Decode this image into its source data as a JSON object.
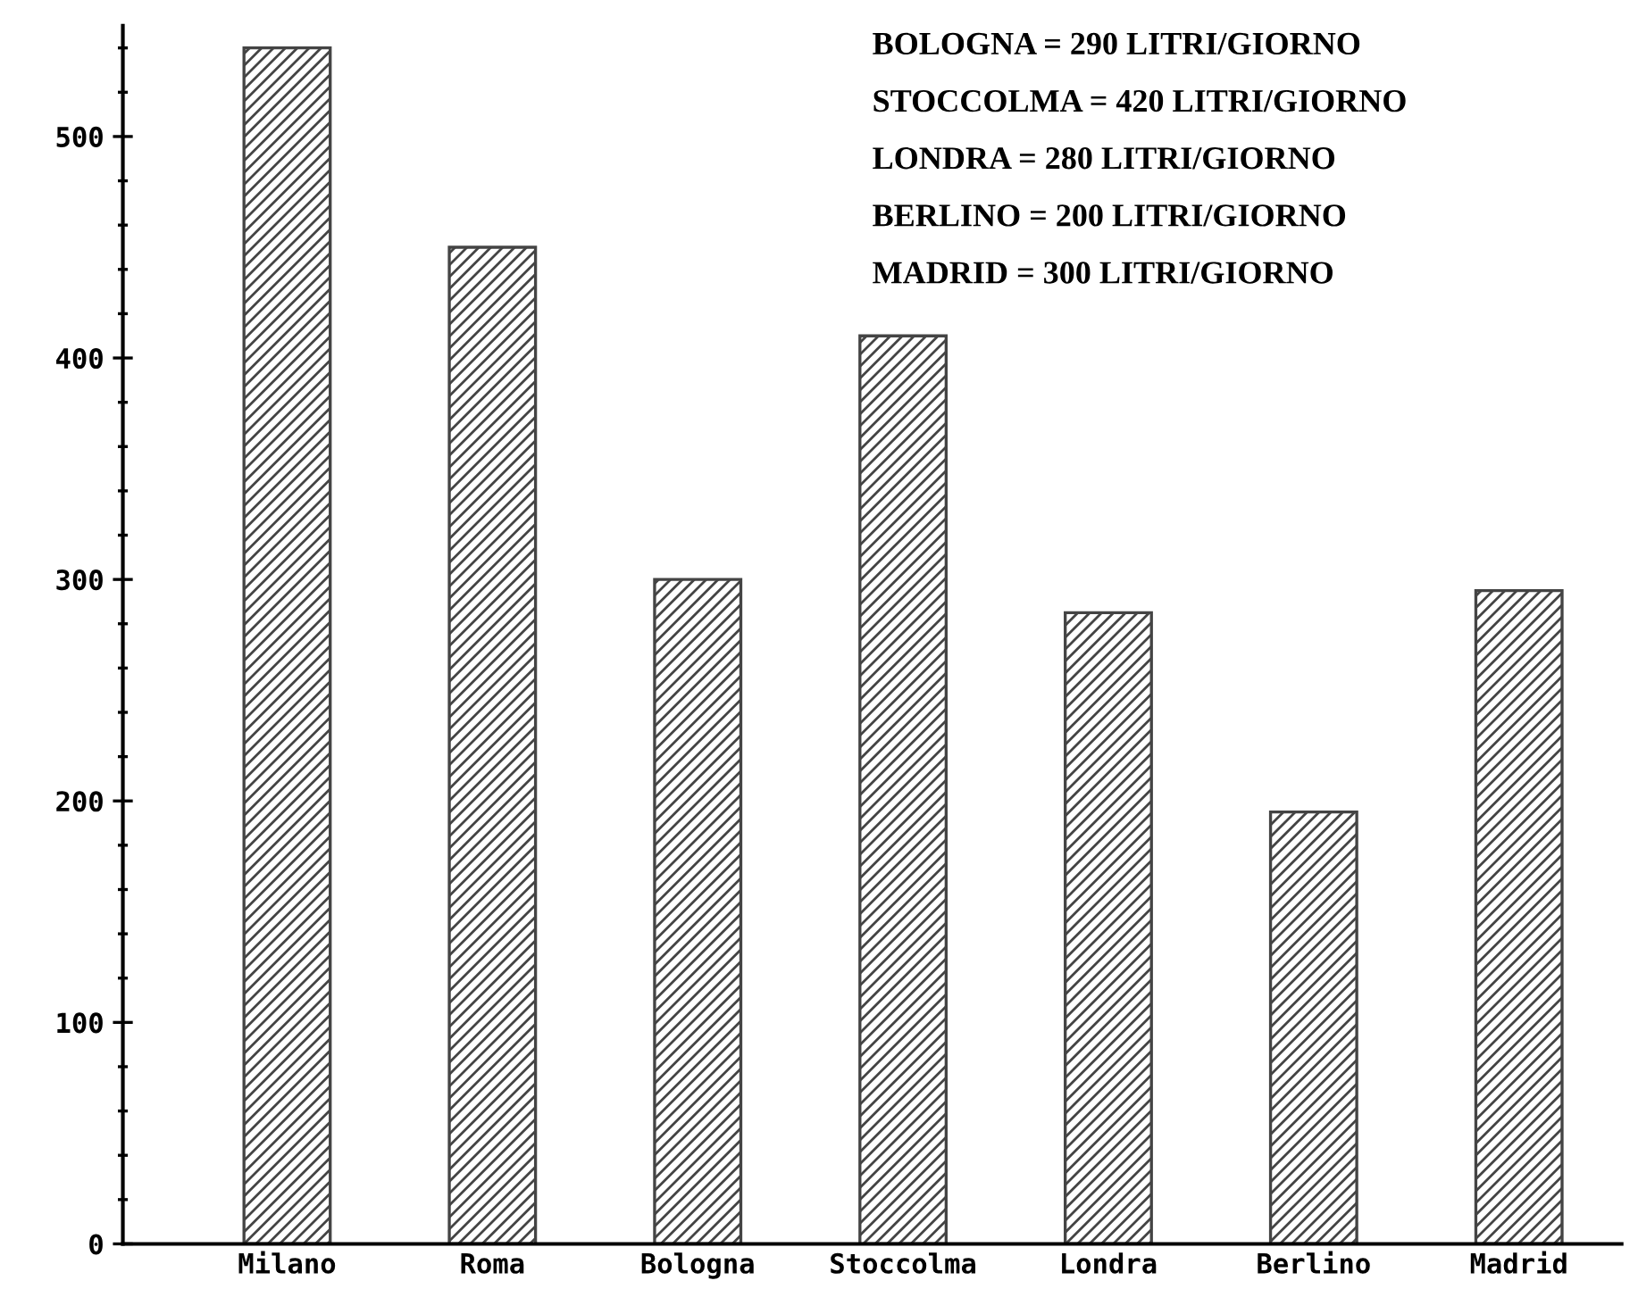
{
  "chart_data": {
    "type": "bar",
    "categories": [
      "Milano",
      "Roma",
      "Bologna",
      "Stoccolma",
      "Londra",
      "Berlino",
      "Madrid"
    ],
    "values": [
      540,
      450,
      300,
      410,
      285,
      195,
      295
    ],
    "color": "#444444",
    "ylim": [
      0,
      550
    ],
    "yticks": [
      0,
      {
        "value": 20,
        "label": null
      },
      {
        "value": 40,
        "label": null
      },
      {
        "value": 60,
        "label": null
      },
      {
        "value": 80,
        "label": null
      },
      100,
      {
        "value": 120,
        "label": null
      },
      {
        "value": 140,
        "label": null
      },
      {
        "value": 160,
        "label": null
      },
      {
        "value": 180,
        "label": null
      },
      200,
      {
        "value": 220,
        "label": null
      },
      {
        "value": 240,
        "label": null
      },
      {
        "value": 260,
        "label": null
      },
      {
        "value": 280,
        "label": null
      },
      300,
      {
        "value": 320,
        "label": null
      },
      {
        "value": 340,
        "label": null
      },
      {
        "value": 360,
        "label": null
      },
      {
        "value": 380,
        "label": null
      },
      400,
      {
        "value": 420,
        "label": null
      },
      {
        "value": 440,
        "label": null
      },
      {
        "value": 460,
        "label": null
      },
      {
        "value": 480,
        "label": null
      },
      500,
      {
        "value": 520,
        "label": null
      },
      {
        "value": 540,
        "label": null
      }
    ],
    "annotations": [
      "BOLOGNA = 290 LITRI/GIORNO",
      "STOCCOLMA = 420 LITRI/GIORNO",
      "LONDRA = 280 LITRI/GIORNO",
      "BERLINO = 200 LITRI/GIORNO",
      "MADRID = 300 LITRI/GIORNO"
    ],
    "grid": false
  }
}
